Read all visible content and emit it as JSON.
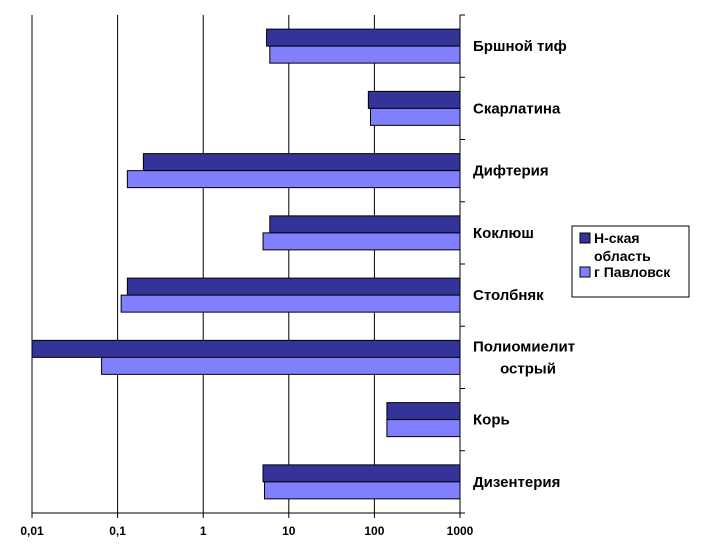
{
  "chart_data": {
    "type": "bar",
    "orientation": "horizontal",
    "x_scale": "log",
    "xlim": [
      0.01,
      1000
    ],
    "x_ticks": [
      "0,01",
      "0,1",
      "1",
      "10",
      "100",
      "1000"
    ],
    "grid": "vertical gridlines",
    "bar_direction": "from right (1000) toward left",
    "legend_position": "right",
    "categories": [
      [
        "Бршной тиф"
      ],
      [
        "Скарлатина"
      ],
      [
        "Дифтерия"
      ],
      [
        " Коклюш"
      ],
      [
        "Столбняк"
      ],
      [
        "Полиомиелит",
        "острый"
      ],
      [
        "Корь"
      ],
      [
        "Дизентерия"
      ]
    ],
    "series": [
      {
        "name": [
          "Н-ская",
          "область"
        ],
        "color": "#333399",
        "values": [
          5.5,
          85,
          0.2,
          6,
          0.13,
          0.01,
          140,
          5
        ]
      },
      {
        "name": [
          "г Павловск"
        ],
        "color": "#8080FF",
        "values": [
          6,
          90,
          0.13,
          5,
          0.11,
          0.065,
          140,
          5.2
        ]
      }
    ]
  }
}
